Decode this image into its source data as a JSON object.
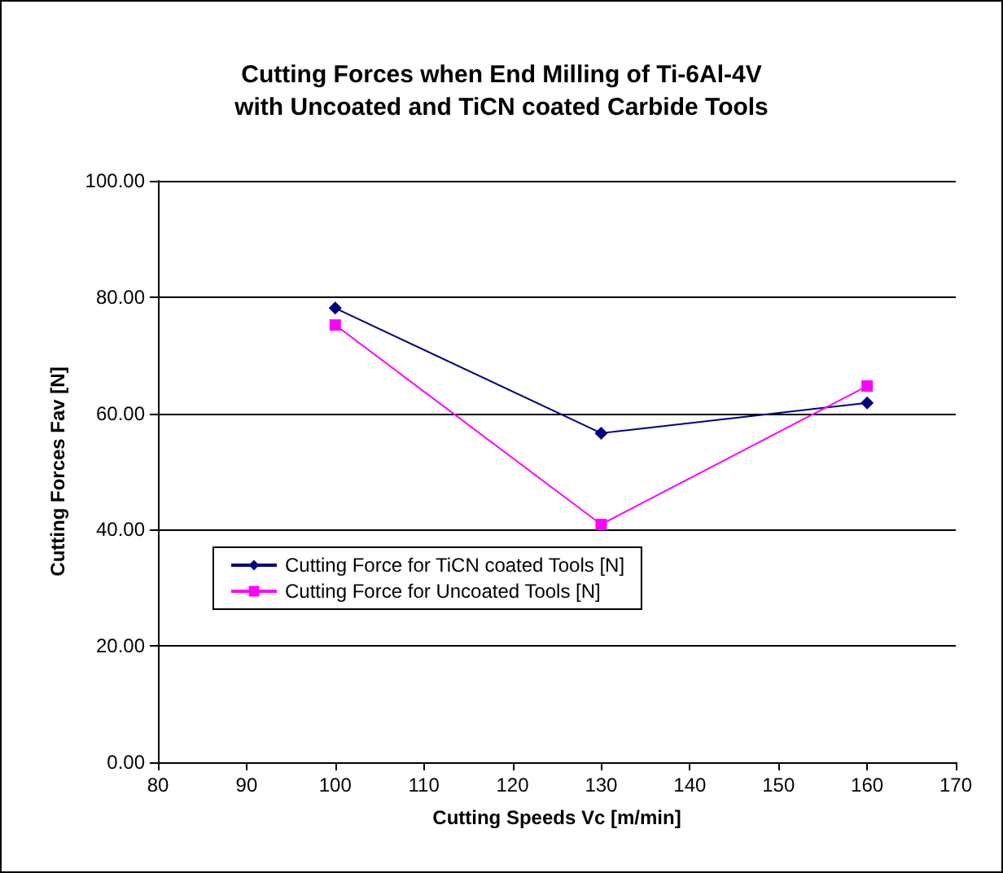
{
  "chart_data": {
    "type": "line",
    "title": "Cutting Forces when End Milling of Ti-6Al-4V\nwith Uncoated and TiCN coated Carbide Tools",
    "xlabel": "Cutting Speeds Vc [m/min]",
    "ylabel": "Cutting Forces Fav [N]",
    "x": [
      100,
      130,
      160
    ],
    "series": [
      {
        "name": "Cutting Force for TiCN coated Tools [N]",
        "color": "#000080",
        "marker": "diamond",
        "values": [
          78.1,
          56.6,
          61.8
        ]
      },
      {
        "name": "Cutting Force for Uncoated Tools [N]",
        "color": "#ff00ff",
        "marker": "square",
        "values": [
          75.2,
          40.9,
          64.7
        ]
      }
    ],
    "xlim": [
      80,
      170
    ],
    "xticks": [
      80,
      90,
      100,
      110,
      120,
      130,
      140,
      150,
      160,
      170
    ],
    "ylim": [
      0,
      100
    ],
    "yticks": [
      {
        "value": 0,
        "label": "0.00"
      },
      {
        "value": 20,
        "label": "20.00"
      },
      {
        "value": 40,
        "label": "40.00"
      },
      {
        "value": 60,
        "label": "60.00"
      },
      {
        "value": 80,
        "label": "80.00"
      },
      {
        "value": 100,
        "label": "100.00"
      }
    ],
    "grid": "y",
    "legend": "left",
    "line_style": "solid"
  }
}
